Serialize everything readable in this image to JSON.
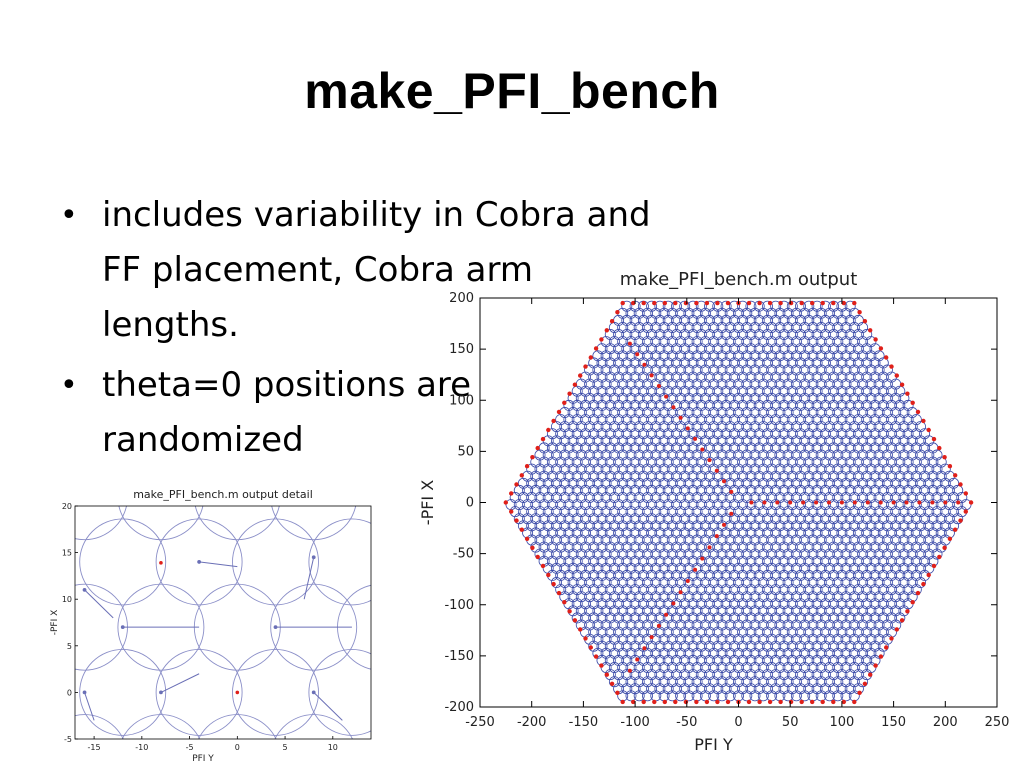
{
  "slide": {
    "title": "make_PFI_bench",
    "bullets": [
      "includes variability in Cobra and FF placement, Cobra arm lengths.",
      "theta=0 positions are randomized"
    ],
    "bullet_marker": "•"
  },
  "chart_data": [
    {
      "type": "scatter",
      "title": "make_PFI_bench.m output",
      "xlabel": "PFI Y",
      "ylabel": "-PFI X",
      "xlim": [
        -250,
        250
      ],
      "ylim": [
        -200,
        200
      ],
      "xticks": [
        "-250",
        "-200",
        "-150",
        "-100",
        "-50",
        "0",
        "50",
        "100",
        "150",
        "200",
        "250"
      ],
      "yticks": [
        "-200",
        "-150",
        "-100",
        "-50",
        "0",
        "50",
        "100",
        "150",
        "200"
      ],
      "grid": false,
      "colors": {
        "circles": "#3a4aa8",
        "points": "#e0201a",
        "frame": "#000000"
      },
      "shape": "hexagon",
      "hex_vertices": [
        [
          -225,
          0
        ],
        [
          -112,
          195
        ],
        [
          112,
          195
        ],
        [
          225,
          0
        ],
        [
          112,
          -195
        ],
        [
          -112,
          -195
        ]
      ],
      "series": [
        {
          "values": [
            [
              -225,
              0
            ],
            [
              -112,
              195
            ],
            [
              112,
              195
            ],
            [
              225,
              0
            ],
            [
              112,
              -195
            ],
            [
              -112,
              -195
            ]
          ]
        }
      ]
    },
    {
      "type": "scatter",
      "title": "make_PFI_bench.m output detail",
      "xlabel": "PFI Y",
      "ylabel": "-PFI X",
      "xlim": [
        -17,
        14
      ],
      "ylim": [
        -5,
        20
      ],
      "xticks": [
        "-15",
        "-10",
        "-5",
        "0",
        "5",
        "10"
      ],
      "yticks": [
        "-5",
        "0",
        "5",
        "10",
        "15",
        "20"
      ],
      "grid": false,
      "colors": {
        "circles": "#8b8fc8",
        "arms": "#6a6fb6",
        "points": "#e0201a",
        "frame": "#000000"
      },
      "fiducials": [
        [
          -8,
          13.9
        ],
        [
          0,
          0
        ]
      ],
      "arms": [
        [
          [
            -16,
            11
          ],
          [
            -13,
            8
          ]
        ],
        [
          [
            -4,
            14
          ],
          [
            0,
            13.5
          ]
        ],
        [
          [
            8,
            14.5
          ],
          [
            7,
            10
          ]
        ],
        [
          [
            -12,
            7
          ],
          [
            -4,
            7
          ]
        ],
        [
          [
            4,
            7
          ],
          [
            12,
            7
          ]
        ],
        [
          [
            -16,
            0
          ],
          [
            -15,
            -3
          ]
        ],
        [
          [
            -8,
            0
          ],
          [
            -4,
            2
          ]
        ],
        [
          [
            8,
            0
          ],
          [
            11,
            -3
          ]
        ]
      ],
      "circle_centers": [
        [
          -16,
          21
        ],
        [
          -8,
          21
        ],
        [
          0,
          21
        ],
        [
          8,
          21
        ],
        [
          -12,
          14
        ],
        [
          -4,
          14
        ],
        [
          4,
          14
        ],
        [
          12,
          14
        ],
        [
          -16,
          7
        ],
        [
          -8,
          7
        ],
        [
          0,
          7
        ],
        [
          8,
          7
        ],
        [
          15,
          7
        ],
        [
          -12,
          0
        ],
        [
          -4,
          0
        ],
        [
          4,
          0
        ],
        [
          12,
          0
        ],
        [
          -16,
          -7
        ],
        [
          -8,
          -7
        ],
        [
          0,
          -7
        ],
        [
          8,
          -7
        ]
      ],
      "circle_radius_units": 4.5
    }
  ]
}
